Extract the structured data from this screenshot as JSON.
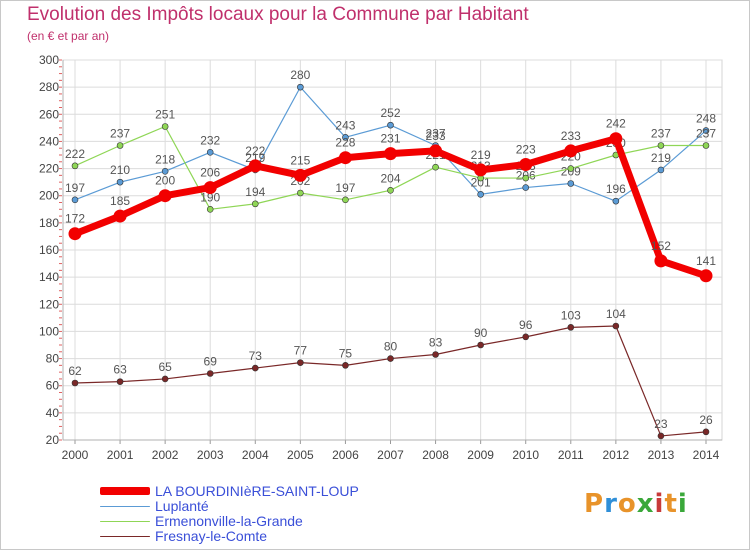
{
  "chart_data": {
    "type": "line",
    "title": "Evolution des Impôts locaux pour la Commune par Habitant",
    "subtitle": "(en € et par an)",
    "ylim": [
      20,
      300
    ],
    "yticks": [
      20,
      40,
      60,
      80,
      100,
      120,
      140,
      160,
      180,
      200,
      220,
      240,
      260,
      280,
      300
    ],
    "categories": [
      "2000",
      "2001",
      "2002",
      "2003",
      "2004",
      "2005",
      "2006",
      "2007",
      "2008",
      "2009",
      "2010",
      "2011",
      "2012",
      "2013",
      "2014"
    ],
    "series": [
      {
        "name": "LA BOURDINIèRE-SAINT-LOUP",
        "color": "#f20000",
        "values": [
          172,
          185,
          200,
          206,
          222,
          215,
          228,
          231,
          233,
          219,
          223,
          233,
          242,
          152,
          141
        ]
      },
      {
        "name": "Luplanté",
        "color": "#5b9bd5",
        "values": [
          197,
          210,
          218,
          232,
          219,
          280,
          243,
          252,
          237,
          201,
          206,
          209,
          196,
          219,
          248
        ]
      },
      {
        "name": "Ermenonville-la-Grande",
        "color": "#8fd656",
        "values": [
          222,
          237,
          251,
          190,
          194,
          202,
          197,
          204,
          221,
          213,
          213,
          220,
          230,
          237,
          237
        ]
      },
      {
        "name": "Fresnay-le-Comte",
        "color": "#7a2828",
        "values": [
          62,
          63,
          65,
          69,
          73,
          77,
          75,
          80,
          83,
          90,
          96,
          103,
          104,
          23,
          26
        ]
      }
    ]
  },
  "logo": {
    "text": "Proxiti"
  }
}
